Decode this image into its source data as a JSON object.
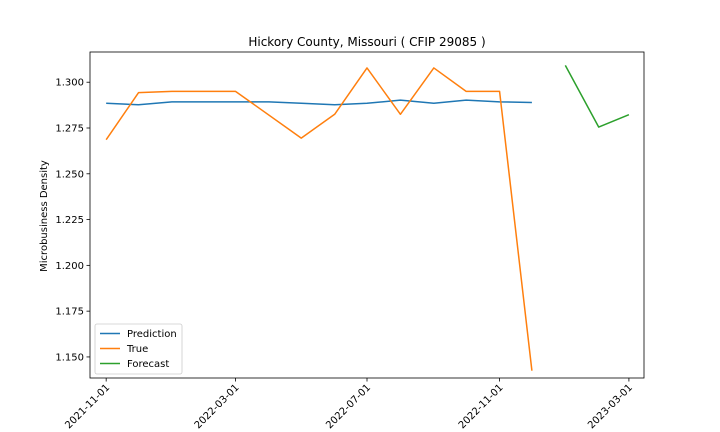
{
  "chart_data": {
    "type": "line",
    "title": "Hickory County, Missouri ( CFIP 29085 )",
    "xlabel": "",
    "ylabel": "Microbusiness Density",
    "x_ticks": [
      "2021-11-01",
      "2022-03-01",
      "2022-07-01",
      "2022-11-01",
      "2023-03-01"
    ],
    "y_ticks": [
      "1.150",
      "1.175",
      "1.200",
      "1.225",
      "1.250",
      "1.275",
      "1.300"
    ],
    "ylim": [
      1.1385,
      1.3165
    ],
    "xlim": [
      "2021-10-17",
      "2023-03-15"
    ],
    "legend_position": "lower-left",
    "series": [
      {
        "name": "Prediction",
        "color": "#1f77b4",
        "points": [
          {
            "x": "2021-11-01",
            "y": 1.2885
          },
          {
            "x": "2021-12-01",
            "y": 1.2877
          },
          {
            "x": "2022-01-01",
            "y": 1.2893
          },
          {
            "x": "2022-02-01",
            "y": 1.2893
          },
          {
            "x": "2022-03-01",
            "y": 1.2893
          },
          {
            "x": "2022-04-01",
            "y": 1.2893
          },
          {
            "x": "2022-05-01",
            "y": 1.2885
          },
          {
            "x": "2022-06-01",
            "y": 1.2877
          },
          {
            "x": "2022-07-01",
            "y": 1.2885
          },
          {
            "x": "2022-08-01",
            "y": 1.2902
          },
          {
            "x": "2022-09-01",
            "y": 1.2885
          },
          {
            "x": "2022-10-01",
            "y": 1.2902
          },
          {
            "x": "2022-11-01",
            "y": 1.2893
          },
          {
            "x": "2022-12-01",
            "y": 1.2889
          }
        ]
      },
      {
        "name": "True",
        "color": "#ff7f0e",
        "points": [
          {
            "x": "2021-11-01",
            "y": 1.2686
          },
          {
            "x": "2021-12-01",
            "y": 1.2943
          },
          {
            "x": "2022-01-01",
            "y": 1.295
          },
          {
            "x": "2022-02-01",
            "y": 1.295
          },
          {
            "x": "2022-03-01",
            "y": 1.295
          },
          {
            "x": "2022-05-01",
            "y": 1.2695
          },
          {
            "x": "2022-06-01",
            "y": 1.2825
          },
          {
            "x": "2022-07-01",
            "y": 1.3078
          },
          {
            "x": "2022-08-01",
            "y": 1.2825
          },
          {
            "x": "2022-09-01",
            "y": 1.3078
          },
          {
            "x": "2022-10-01",
            "y": 1.295
          },
          {
            "x": "2022-11-01",
            "y": 1.295
          },
          {
            "x": "2022-12-01",
            "y": 1.1425
          }
        ]
      },
      {
        "name": "Forecast",
        "color": "#2ca02c",
        "points": [
          {
            "x": "2023-01-01",
            "y": 1.3092
          },
          {
            "x": "2023-02-01",
            "y": 1.2755
          },
          {
            "x": "2023-03-01",
            "y": 1.2823
          }
        ]
      }
    ]
  }
}
